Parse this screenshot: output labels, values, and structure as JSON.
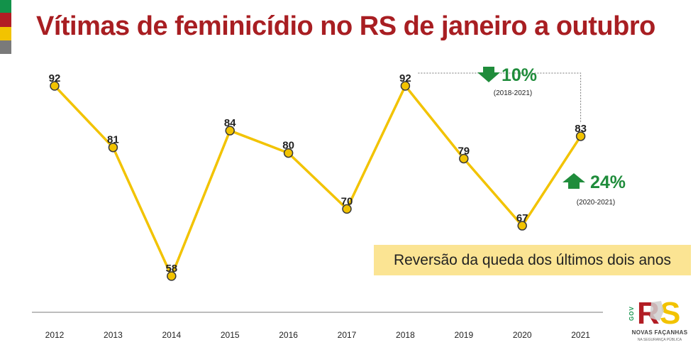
{
  "title": "Vítimas de feminicídio no RS de janeiro a outubro",
  "chart_data": {
    "type": "line",
    "title": "Vítimas de feminicídio no RS de janeiro a outubro",
    "categories": [
      "2012",
      "2013",
      "2014",
      "2015",
      "2016",
      "2017",
      "2018",
      "2019",
      "2020",
      "2021"
    ],
    "series": [
      {
        "values": [
          92,
          81,
          58,
          84,
          80,
          70,
          92,
          79,
          67,
          83
        ]
      }
    ],
    "data_labels": [
      "92",
      "81",
      "58",
      "84",
      "80",
      "70",
      "92",
      "79",
      "67",
      "83"
    ],
    "ylim": [
      50,
      100
    ],
    "grid": false,
    "annotations": [
      {
        "direction": "down",
        "percent": "10%",
        "period": "(2018-2021)"
      },
      {
        "direction": "up",
        "percent": "24%",
        "period": "(2020-2021)"
      }
    ],
    "colors": {
      "line": "#f2c300",
      "marker_fill": "#f2c300",
      "marker_stroke": "#3a3a3a",
      "arrow": "#1f8c3b",
      "title": "#a81e22",
      "callout_bg": "#fbe493"
    }
  },
  "callout": "Reversão da queda dos últimos dois anos",
  "logo": {
    "gov": "GOV",
    "mark": "RS",
    "tagline": "NOVAS FAÇANHAS",
    "sub": "NA SEGURANÇA PÚBLICA"
  }
}
